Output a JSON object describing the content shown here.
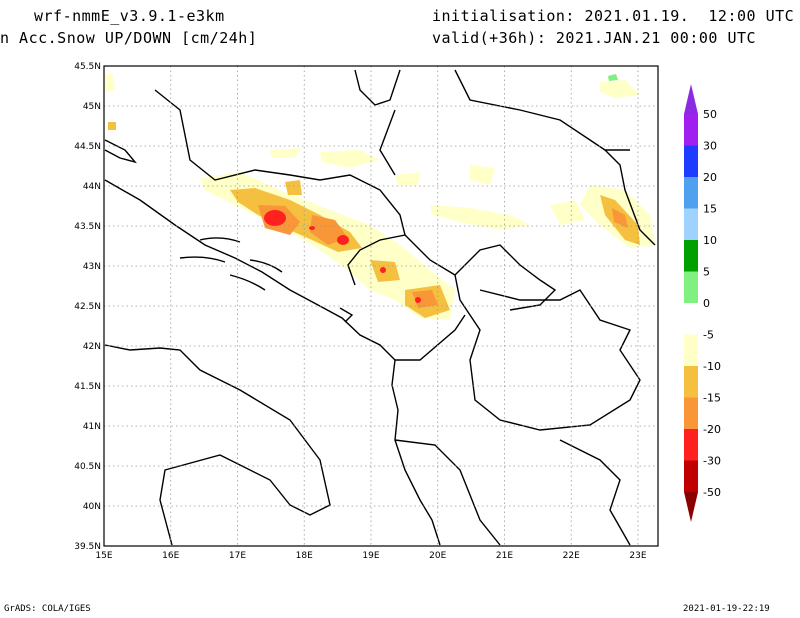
{
  "header": {
    "model": "wrf-nmmE_v3.9.1-e3km",
    "field": "n Acc.Snow UP/DOWN [cm/24h]",
    "init": "initialisation: 2021.01.19.  12:00 UTC",
    "valid": "valid(+36h): 2021.JAN.21 00:00 UTC"
  },
  "footer": {
    "credit": "GrADS: COLA/IGES",
    "timestamp": "2021-01-19-22:19"
  },
  "map": {
    "lon_range": [
      15,
      23.3
    ],
    "lat_range": [
      39.5,
      45.5
    ],
    "lon_ticks": [
      "15E",
      "16E",
      "17E",
      "18E",
      "19E",
      "20E",
      "21E",
      "22E",
      "23E"
    ],
    "lat_ticks": [
      "39.5N",
      "40N",
      "40.5N",
      "41N",
      "41.5N",
      "42N",
      "42.5N",
      "43N",
      "43.5N",
      "44N",
      "44.5N",
      "45N",
      "45.5N"
    ],
    "grid": true
  },
  "legend": {
    "labels": [
      "50",
      "30",
      "20",
      "15",
      "10",
      "5",
      "0",
      "-5",
      "-10",
      "-15",
      "-20",
      "-30",
      "-50"
    ],
    "colors": [
      "#a020f0",
      "#1e3cff",
      "#50a0f0",
      "#a0d2ff",
      "#00a000",
      "#80f080",
      "#ffffff",
      "#ffffc8",
      "#f5c040",
      "#f89638",
      "#ff2020",
      "#c00000",
      "#8b0000"
    ],
    "top_arrow_color": "#8a2be2",
    "bottom_arrow_color": "#8b0000"
  }
}
